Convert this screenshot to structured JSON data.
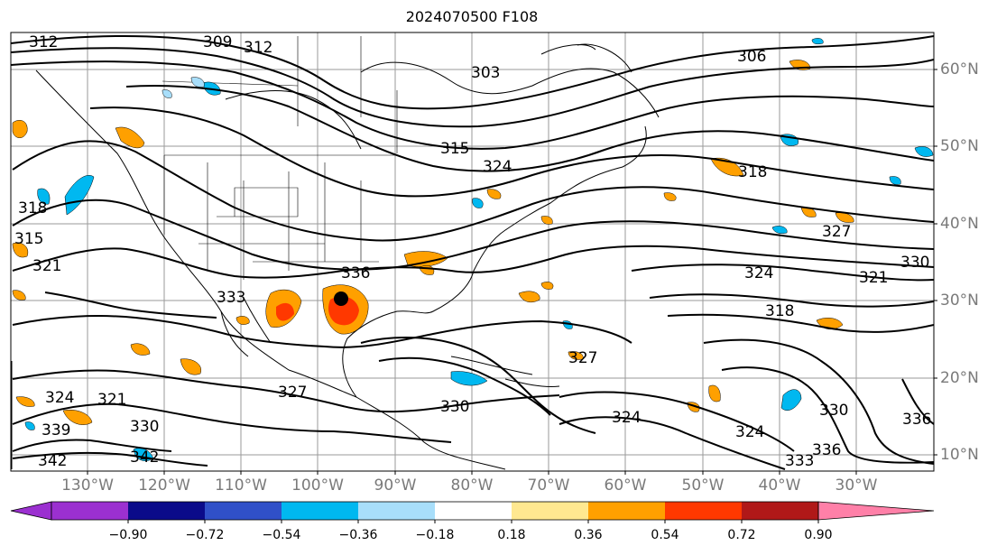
{
  "title": "2024070500 F108",
  "axes": {
    "longitude_labels": [
      "130°W",
      "120°W",
      "110°W",
      "100°W",
      "90°W",
      "80°W",
      "70°W",
      "60°W",
      "50°W",
      "40°W",
      "30°W"
    ],
    "latitude_labels": [
      "60°N",
      "50°N",
      "40°N",
      "30°N",
      "20°N",
      "10°N"
    ]
  },
  "contour_labels": [
    "312",
    "309",
    "312",
    "303",
    "306",
    "315",
    "324",
    "318",
    "327",
    "330",
    "321",
    "324",
    "318",
    "336",
    "333",
    "315",
    "318",
    "321",
    "324",
    "321",
    "330",
    "339",
    "342",
    "342",
    "327",
    "327",
    "330",
    "324",
    "324",
    "330",
    "336",
    "333",
    "336"
  ],
  "colorbar": {
    "tick_labels": [
      "−0.90",
      "−0.72",
      "−0.54",
      "−0.36",
      "−0.18",
      "0.18",
      "0.36",
      "0.54",
      "0.72",
      "0.90"
    ],
    "colors": [
      "#9b30d0",
      "#0b0b8a",
      "#3050c8",
      "#00b8f0",
      "#a8defa",
      "#ffffff",
      "#ffe890",
      "#ffa000",
      "#ff3800",
      "#b01818",
      "#ff80a8"
    ]
  }
}
